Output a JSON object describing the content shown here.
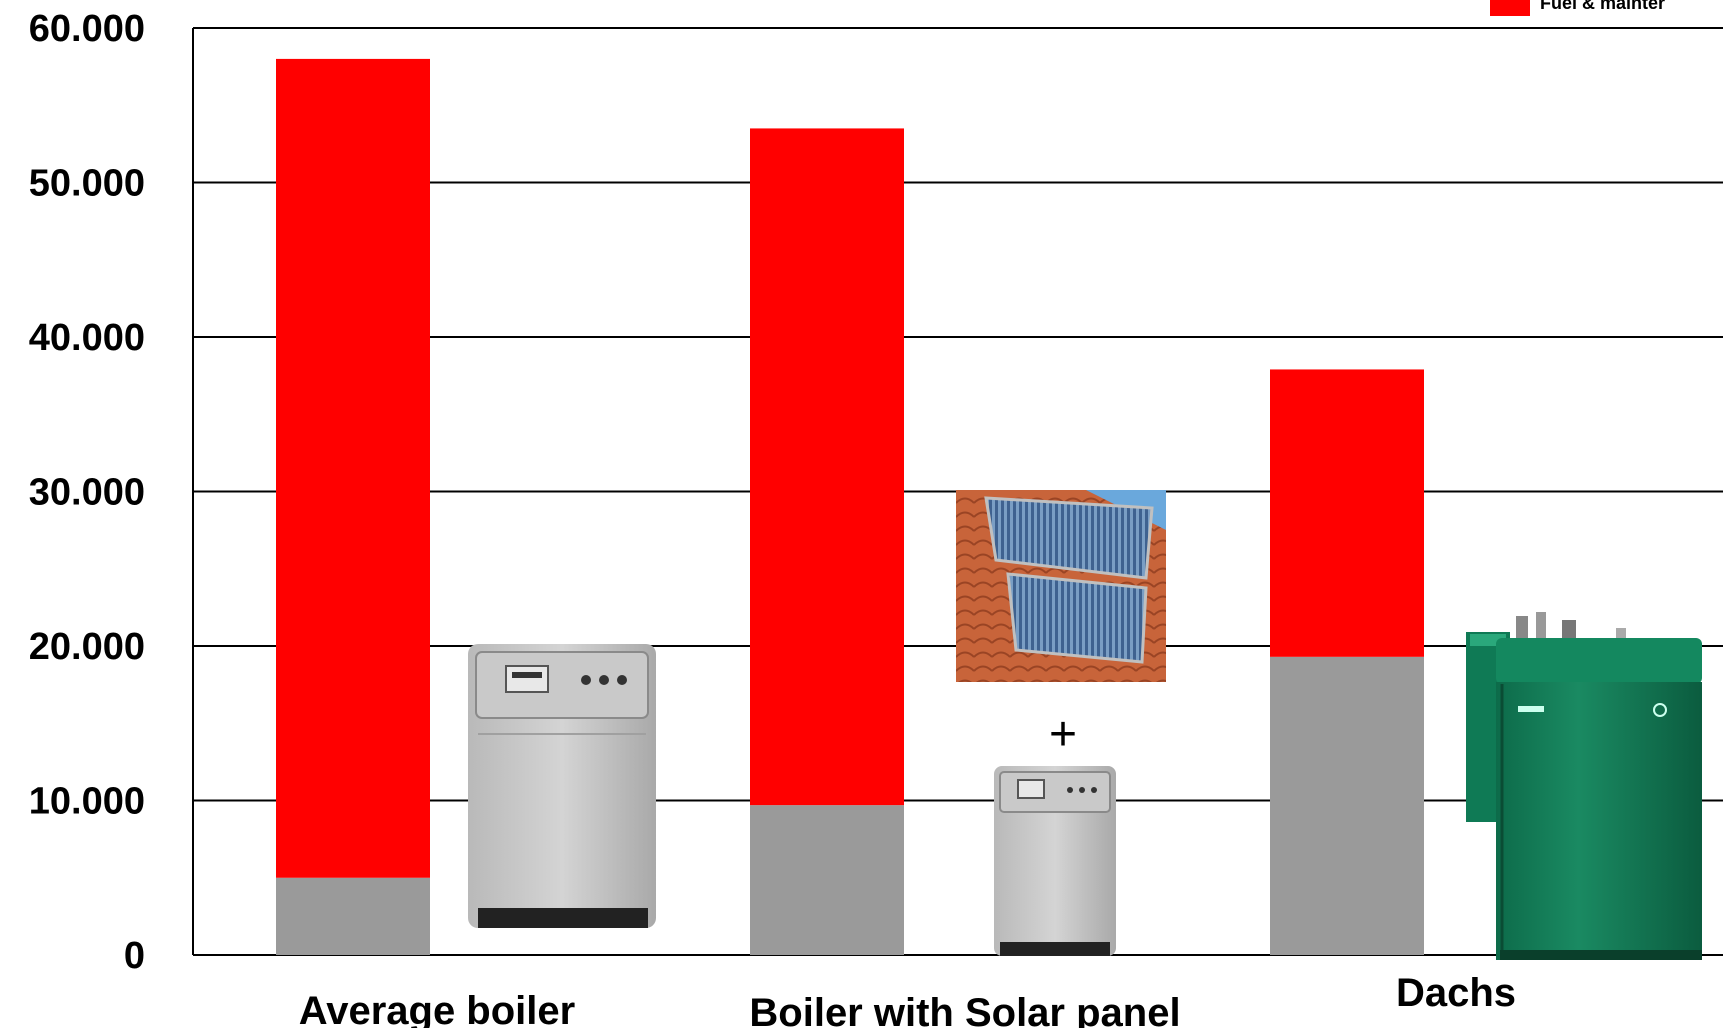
{
  "chart_data": {
    "type": "bar",
    "stacked": true,
    "categories": [
      "Average boiler",
      "Boiler with Solar panel",
      "Dachs"
    ],
    "series": [
      {
        "name": "",
        "values": [
          5000,
          9700,
          19300
        ],
        "color": "#9a9a9a"
      },
      {
        "name": "Fuel & mainter",
        "values": [
          53000,
          43800,
          18600
        ],
        "color": "#ff0000"
      }
    ],
    "ylim": [
      0,
      60000
    ],
    "yticks": [
      0,
      10000,
      20000,
      30000,
      40000,
      50000,
      60000
    ],
    "ytick_labels": [
      "0",
      "10.000",
      "20.000",
      "30.000",
      "40.000",
      "50.000",
      "60.000"
    ],
    "grid": true,
    "legend_position": "top-right",
    "xlabel": "",
    "ylabel": "",
    "title": ""
  },
  "annotations": {
    "plus_sign": "+"
  },
  "pictures": [
    {
      "name": "boiler-photo",
      "depicts": "grey gas boiler"
    },
    {
      "name": "solar-panel-photo",
      "depicts": "solar panels on tiled roof"
    },
    {
      "name": "small-boiler-photo",
      "depicts": "grey gas boiler"
    },
    {
      "name": "dachs-unit-photo",
      "depicts": "green Dachs CHP unit"
    }
  ]
}
